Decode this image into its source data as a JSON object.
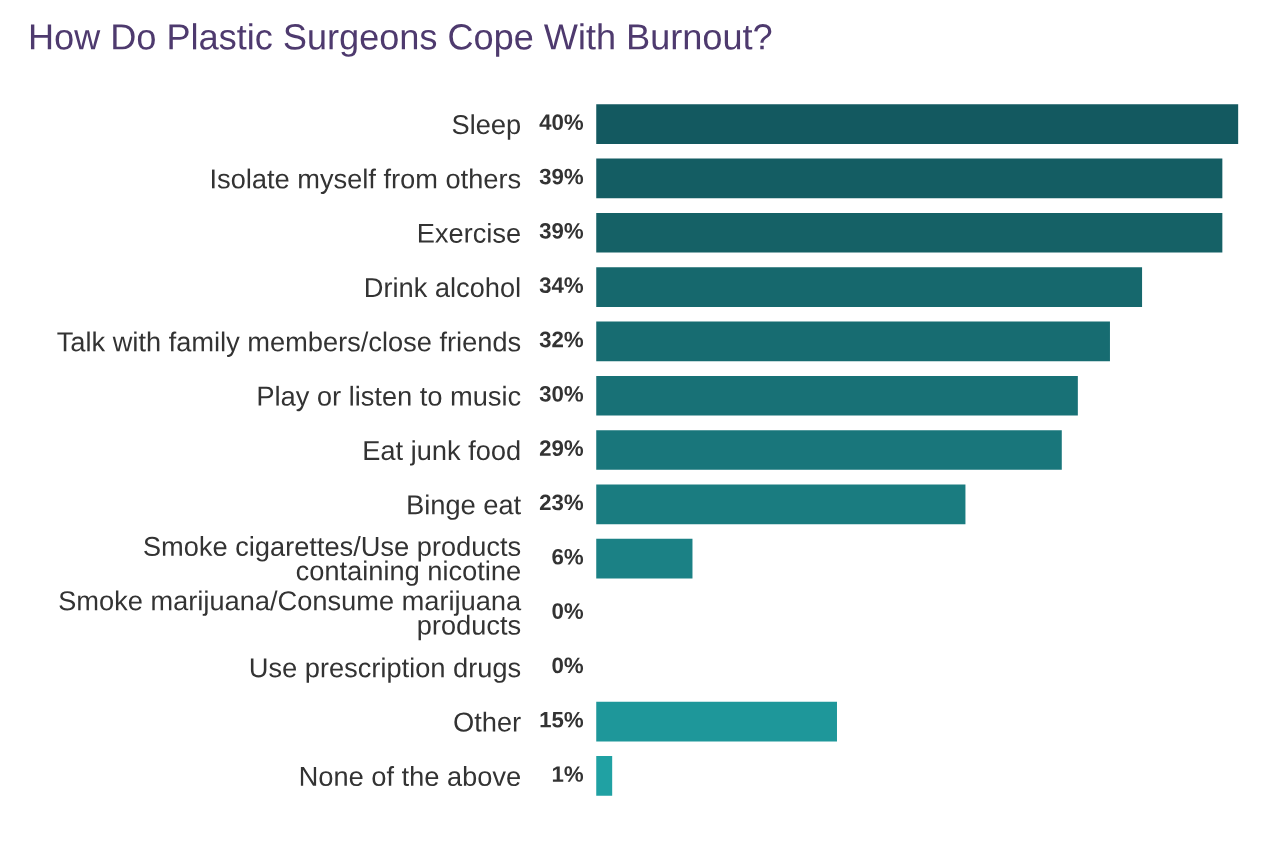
{
  "chart_data": {
    "type": "bar",
    "orientation": "horizontal",
    "title": "How Do Plastic Surgeons Cope With Burnout?",
    "categories": [
      "Sleep",
      "Isolate myself from others",
      "Exercise",
      "Drink alcohol",
      "Talk with family members/close friends",
      "Play or listen to music",
      "Eat junk food",
      "Binge eat",
      "Smoke cigarettes/Use products\ncontaining nicotine",
      "Smoke marijuana/Consume marijuana\nproducts",
      "Use prescription drugs",
      "Other",
      "None of the above"
    ],
    "values": [
      40,
      39,
      39,
      34,
      32,
      30,
      29,
      23,
      6,
      0,
      0,
      15,
      1
    ],
    "value_labels": [
      "40%",
      "39%",
      "39%",
      "34%",
      "32%",
      "30%",
      "29%",
      "23%",
      "6%",
      "0%",
      "0%",
      "15%",
      "1%"
    ],
    "colors": [
      "#135960",
      "#145d63",
      "#156166",
      "#16686d",
      "#176c71",
      "#187176",
      "#19767b",
      "#1a7c80",
      "#1b8185",
      "#1c878b",
      "#1d8c90",
      "#1e979a",
      "#20a1a3"
    ]
  }
}
